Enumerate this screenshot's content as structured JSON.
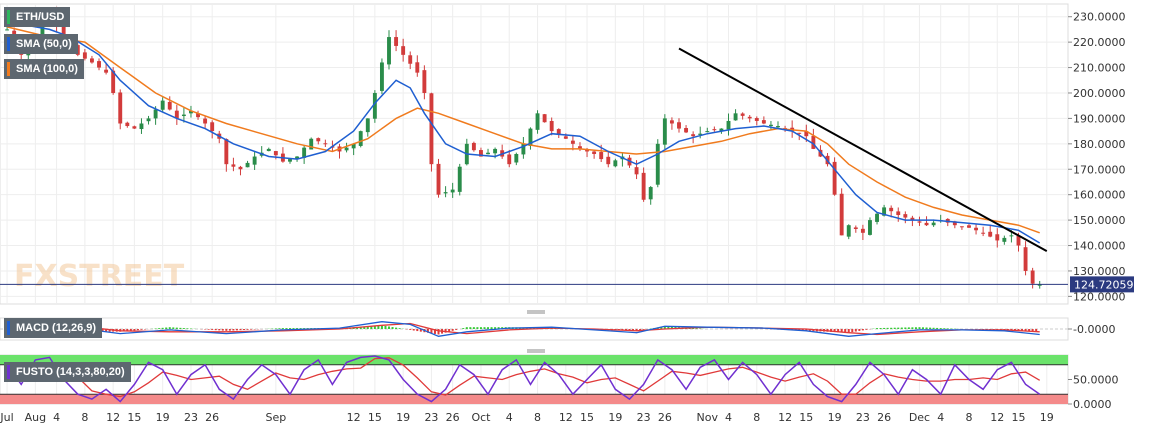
{
  "chart_data": {
    "type": "candlestick",
    "symbol": "ETH/USD",
    "watermark": "FXSTREET",
    "last_price": "124.72059",
    "y_ticks": [
      "230.0000",
      "220.0000",
      "210.0000",
      "200.0000",
      "190.0000",
      "180.0000",
      "170.0000",
      "160.0000",
      "150.0000",
      "140.0000",
      "130.0000",
      "120.0000"
    ],
    "ylim": [
      117,
      235
    ],
    "x_ticks": [
      "Jul",
      "Aug",
      "4",
      "8",
      "12",
      "15",
      "19",
      "23",
      "26",
      "Sep",
      "12",
      "15",
      "19",
      "23",
      "26",
      "Oct",
      "4",
      "8",
      "12",
      "15",
      "19",
      "23",
      "26",
      "Nov",
      "4",
      "8",
      "12",
      "15",
      "19",
      "23",
      "26",
      "Dec",
      "4",
      "8",
      "12",
      "15",
      "19"
    ],
    "x_tick_days": [
      -3,
      1,
      4,
      8,
      12,
      15,
      19,
      23,
      26,
      35,
      46,
      49,
      53,
      57,
      60,
      64,
      68,
      72,
      76,
      79,
      83,
      87,
      90,
      96,
      99,
      103,
      107,
      110,
      114,
      118,
      121,
      126,
      129,
      133,
      137,
      140,
      144
    ],
    "overlays": [
      {
        "name": "SMA (50,0)",
        "color": "#1f5fd1"
      },
      {
        "name": "SMA (100,0)",
        "color": "#f07b1e"
      }
    ],
    "trendline": {
      "color": "#000000",
      "from": [
        92,
        217.5
      ],
      "to": [
        144,
        137.8
      ]
    },
    "close": [
      {
        "d": -3,
        "v": 225
      },
      {
        "d": -1,
        "v": 215
      },
      {
        "d": 1,
        "v": 222
      },
      {
        "d": 3,
        "v": 232
      },
      {
        "d": 5,
        "v": 222
      },
      {
        "d": 7,
        "v": 215
      },
      {
        "d": 9,
        "v": 212
      },
      {
        "d": 11,
        "v": 208
      },
      {
        "d": 12,
        "v": 200
      },
      {
        "d": 13,
        "v": 188
      },
      {
        "d": 15,
        "v": 186
      },
      {
        "d": 17,
        "v": 190
      },
      {
        "d": 19,
        "v": 197
      },
      {
        "d": 21,
        "v": 190
      },
      {
        "d": 23,
        "v": 193
      },
      {
        "d": 25,
        "v": 188
      },
      {
        "d": 27,
        "v": 182
      },
      {
        "d": 28,
        "v": 172
      },
      {
        "d": 30,
        "v": 170
      },
      {
        "d": 32,
        "v": 175
      },
      {
        "d": 34,
        "v": 178
      },
      {
        "d": 36,
        "v": 173
      },
      {
        "d": 38,
        "v": 175
      },
      {
        "d": 40,
        "v": 182
      },
      {
        "d": 42,
        "v": 180
      },
      {
        "d": 44,
        "v": 177
      },
      {
        "d": 46,
        "v": 180
      },
      {
        "d": 48,
        "v": 190
      },
      {
        "d": 49,
        "v": 200
      },
      {
        "d": 50,
        "v": 212
      },
      {
        "d": 51,
        "v": 222
      },
      {
        "d": 53,
        "v": 215
      },
      {
        "d": 55,
        "v": 208
      },
      {
        "d": 56,
        "v": 200
      },
      {
        "d": 57,
        "v": 172
      },
      {
        "d": 58,
        "v": 160
      },
      {
        "d": 60,
        "v": 162
      },
      {
        "d": 62,
        "v": 180
      },
      {
        "d": 64,
        "v": 175
      },
      {
        "d": 66,
        "v": 178
      },
      {
        "d": 68,
        "v": 172
      },
      {
        "d": 70,
        "v": 180
      },
      {
        "d": 72,
        "v": 192
      },
      {
        "d": 74,
        "v": 185
      },
      {
        "d": 76,
        "v": 182
      },
      {
        "d": 78,
        "v": 178
      },
      {
        "d": 80,
        "v": 176
      },
      {
        "d": 82,
        "v": 172
      },
      {
        "d": 84,
        "v": 175
      },
      {
        "d": 86,
        "v": 168
      },
      {
        "d": 87,
        "v": 158
      },
      {
        "d": 88,
        "v": 163
      },
      {
        "d": 89,
        "v": 180
      },
      {
        "d": 90,
        "v": 190
      },
      {
        "d": 92,
        "v": 186
      },
      {
        "d": 94,
        "v": 183
      },
      {
        "d": 96,
        "v": 185
      },
      {
        "d": 98,
        "v": 186
      },
      {
        "d": 100,
        "v": 192
      },
      {
        "d": 102,
        "v": 190
      },
      {
        "d": 104,
        "v": 188
      },
      {
        "d": 106,
        "v": 187
      },
      {
        "d": 108,
        "v": 185
      },
      {
        "d": 110,
        "v": 183
      },
      {
        "d": 111,
        "v": 178
      },
      {
        "d": 113,
        "v": 172
      },
      {
        "d": 114,
        "v": 160
      },
      {
        "d": 115,
        "v": 144
      },
      {
        "d": 116,
        "v": 148
      },
      {
        "d": 118,
        "v": 145
      },
      {
        "d": 119,
        "v": 150
      },
      {
        "d": 121,
        "v": 155
      },
      {
        "d": 123,
        "v": 152
      },
      {
        "d": 125,
        "v": 150
      },
      {
        "d": 127,
        "v": 148
      },
      {
        "d": 129,
        "v": 150
      },
      {
        "d": 131,
        "v": 148
      },
      {
        "d": 133,
        "v": 147
      },
      {
        "d": 135,
        "v": 145
      },
      {
        "d": 137,
        "v": 142
      },
      {
        "d": 139,
        "v": 144
      },
      {
        "d": 140,
        "v": 140
      },
      {
        "d": 141,
        "v": 130
      },
      {
        "d": 142,
        "v": 125
      },
      {
        "d": 143,
        "v": 124.72
      }
    ],
    "sma50": [
      {
        "d": -3,
        "v": 228
      },
      {
        "d": 3,
        "v": 225
      },
      {
        "d": 6,
        "v": 222
      },
      {
        "d": 10,
        "v": 215
      },
      {
        "d": 13,
        "v": 205
      },
      {
        "d": 17,
        "v": 195
      },
      {
        "d": 21,
        "v": 190
      },
      {
        "d": 25,
        "v": 186
      },
      {
        "d": 29,
        "v": 180
      },
      {
        "d": 34,
        "v": 175
      },
      {
        "d": 38,
        "v": 174
      },
      {
        "d": 42,
        "v": 177
      },
      {
        "d": 46,
        "v": 185
      },
      {
        "d": 49,
        "v": 196
      },
      {
        "d": 52,
        "v": 205
      },
      {
        "d": 54,
        "v": 202
      },
      {
        "d": 56,
        "v": 192
      },
      {
        "d": 59,
        "v": 180
      },
      {
        "d": 62,
        "v": 176
      },
      {
        "d": 66,
        "v": 175
      },
      {
        "d": 70,
        "v": 179
      },
      {
        "d": 74,
        "v": 184
      },
      {
        "d": 78,
        "v": 183
      },
      {
        "d": 82,
        "v": 177
      },
      {
        "d": 86,
        "v": 172
      },
      {
        "d": 89,
        "v": 176
      },
      {
        "d": 92,
        "v": 181
      },
      {
        "d": 96,
        "v": 184
      },
      {
        "d": 100,
        "v": 186
      },
      {
        "d": 104,
        "v": 187
      },
      {
        "d": 108,
        "v": 185
      },
      {
        "d": 111,
        "v": 180
      },
      {
        "d": 114,
        "v": 170
      },
      {
        "d": 117,
        "v": 160
      },
      {
        "d": 120,
        "v": 153
      },
      {
        "d": 124,
        "v": 150
      },
      {
        "d": 128,
        "v": 150
      },
      {
        "d": 132,
        "v": 149
      },
      {
        "d": 136,
        "v": 148
      },
      {
        "d": 140,
        "v": 146
      },
      {
        "d": 143,
        "v": 141
      }
    ],
    "sma100": [
      {
        "d": -3,
        "v": 226
      },
      {
        "d": 3,
        "v": 222
      },
      {
        "d": 8,
        "v": 220
      },
      {
        "d": 13,
        "v": 210
      },
      {
        "d": 18,
        "v": 200
      },
      {
        "d": 23,
        "v": 193
      },
      {
        "d": 28,
        "v": 188
      },
      {
        "d": 33,
        "v": 184
      },
      {
        "d": 38,
        "v": 180
      },
      {
        "d": 43,
        "v": 177
      },
      {
        "d": 48,
        "v": 182
      },
      {
        "d": 52,
        "v": 190
      },
      {
        "d": 55,
        "v": 194
      },
      {
        "d": 58,
        "v": 192
      },
      {
        "d": 62,
        "v": 188
      },
      {
        "d": 66,
        "v": 184
      },
      {
        "d": 70,
        "v": 180
      },
      {
        "d": 74,
        "v": 178
      },
      {
        "d": 78,
        "v": 178
      },
      {
        "d": 82,
        "v": 177
      },
      {
        "d": 86,
        "v": 176
      },
      {
        "d": 90,
        "v": 177
      },
      {
        "d": 94,
        "v": 179
      },
      {
        "d": 98,
        "v": 181
      },
      {
        "d": 102,
        "v": 184
      },
      {
        "d": 106,
        "v": 186
      },
      {
        "d": 110,
        "v": 185
      },
      {
        "d": 113,
        "v": 180
      },
      {
        "d": 116,
        "v": 172
      },
      {
        "d": 120,
        "v": 165
      },
      {
        "d": 124,
        "v": 159
      },
      {
        "d": 128,
        "v": 155
      },
      {
        "d": 132,
        "v": 152
      },
      {
        "d": 136,
        "v": 150
      },
      {
        "d": 140,
        "v": 148
      },
      {
        "d": 143,
        "v": 145
      }
    ],
    "macd": {
      "label": "MACD (12,26,9)",
      "y_tick": "-0.0000",
      "ylim": [
        -12,
        12
      ],
      "colors": {
        "macd": "#1f5fd1",
        "signal": "#e03a3a",
        "hist_pos": "#33cc33",
        "hist_neg": "#e03a3a"
      },
      "values": [
        {
          "d": -3,
          "m": 6,
          "s": 5
        },
        {
          "d": 6,
          "m": 2,
          "s": 4
        },
        {
          "d": 13,
          "m": -5,
          "s": -2
        },
        {
          "d": 20,
          "m": -1,
          "s": -3
        },
        {
          "d": 28,
          "m": -5,
          "s": -3
        },
        {
          "d": 36,
          "m": -1,
          "s": -2
        },
        {
          "d": 44,
          "m": 1,
          "s": 0
        },
        {
          "d": 50,
          "m": 8,
          "s": 4
        },
        {
          "d": 54,
          "m": 5,
          "s": 6
        },
        {
          "d": 58,
          "m": -8,
          "s": -2
        },
        {
          "d": 62,
          "m": -3,
          "s": -5
        },
        {
          "d": 68,
          "m": 1,
          "s": -1
        },
        {
          "d": 74,
          "m": 2,
          "s": 1
        },
        {
          "d": 80,
          "m": -1,
          "s": 0
        },
        {
          "d": 86,
          "m": -4,
          "s": -2
        },
        {
          "d": 90,
          "m": 3,
          "s": 0
        },
        {
          "d": 96,
          "m": 2,
          "s": 2
        },
        {
          "d": 104,
          "m": 1,
          "s": 1
        },
        {
          "d": 110,
          "m": -2,
          "s": 0
        },
        {
          "d": 116,
          "m": -8,
          "s": -4
        },
        {
          "d": 120,
          "m": -5,
          "s": -6
        },
        {
          "d": 126,
          "m": -1,
          "s": -3
        },
        {
          "d": 132,
          "m": -1,
          "s": -1
        },
        {
          "d": 138,
          "m": -2,
          "s": -1
        },
        {
          "d": 143,
          "m": -6,
          "s": -3
        }
      ]
    },
    "fusto": {
      "label": "FUSTO (14,3,3,80,20)",
      "y_ticks": [
        "50.0000",
        "0.0000"
      ],
      "ylim": [
        0,
        100
      ],
      "overbought": 80,
      "oversold": 20,
      "colors": {
        "k": "#7030d0",
        "d": "#e03a3a",
        "upper_zone": "#6be36b",
        "lower_zone": "#f48a8a"
      },
      "values": [
        {
          "d": -3,
          "k": 80
        },
        {
          "d": -1,
          "k": 40
        },
        {
          "d": 1,
          "k": 90
        },
        {
          "d": 3,
          "k": 95
        },
        {
          "d": 5,
          "k": 50
        },
        {
          "d": 7,
          "k": 20
        },
        {
          "d": 9,
          "k": 10
        },
        {
          "d": 11,
          "k": 30
        },
        {
          "d": 13,
          "k": 5
        },
        {
          "d": 15,
          "k": 40
        },
        {
          "d": 17,
          "k": 85
        },
        {
          "d": 19,
          "k": 70
        },
        {
          "d": 21,
          "k": 20
        },
        {
          "d": 23,
          "k": 60
        },
        {
          "d": 25,
          "k": 80
        },
        {
          "d": 27,
          "k": 30
        },
        {
          "d": 29,
          "k": 10
        },
        {
          "d": 31,
          "k": 50
        },
        {
          "d": 33,
          "k": 80
        },
        {
          "d": 35,
          "k": 60
        },
        {
          "d": 37,
          "k": 20
        },
        {
          "d": 39,
          "k": 70
        },
        {
          "d": 41,
          "k": 90
        },
        {
          "d": 43,
          "k": 40
        },
        {
          "d": 45,
          "k": 85
        },
        {
          "d": 47,
          "k": 95
        },
        {
          "d": 49,
          "k": 98
        },
        {
          "d": 51,
          "k": 90
        },
        {
          "d": 53,
          "k": 50
        },
        {
          "d": 55,
          "k": 20
        },
        {
          "d": 57,
          "k": 5
        },
        {
          "d": 59,
          "k": 30
        },
        {
          "d": 61,
          "k": 80
        },
        {
          "d": 63,
          "k": 60
        },
        {
          "d": 65,
          "k": 20
        },
        {
          "d": 67,
          "k": 70
        },
        {
          "d": 69,
          "k": 90
        },
        {
          "d": 71,
          "k": 40
        },
        {
          "d": 73,
          "k": 85
        },
        {
          "d": 75,
          "k": 60
        },
        {
          "d": 77,
          "k": 20
        },
        {
          "d": 79,
          "k": 50
        },
        {
          "d": 81,
          "k": 80
        },
        {
          "d": 83,
          "k": 30
        },
        {
          "d": 85,
          "k": 10
        },
        {
          "d": 87,
          "k": 40
        },
        {
          "d": 89,
          "k": 90
        },
        {
          "d": 91,
          "k": 70
        },
        {
          "d": 93,
          "k": 30
        },
        {
          "d": 95,
          "k": 75
        },
        {
          "d": 97,
          "k": 90
        },
        {
          "d": 99,
          "k": 50
        },
        {
          "d": 101,
          "k": 85
        },
        {
          "d": 103,
          "k": 60
        },
        {
          "d": 105,
          "k": 20
        },
        {
          "d": 107,
          "k": 60
        },
        {
          "d": 109,
          "k": 85
        },
        {
          "d": 111,
          "k": 40
        },
        {
          "d": 113,
          "k": 15
        },
        {
          "d": 115,
          "k": 5
        },
        {
          "d": 117,
          "k": 40
        },
        {
          "d": 119,
          "k": 85
        },
        {
          "d": 121,
          "k": 60
        },
        {
          "d": 123,
          "k": 20
        },
        {
          "d": 125,
          "k": 70
        },
        {
          "d": 127,
          "k": 50
        },
        {
          "d": 129,
          "k": 20
        },
        {
          "d": 131,
          "k": 80
        },
        {
          "d": 133,
          "k": 50
        },
        {
          "d": 135,
          "k": 30
        },
        {
          "d": 137,
          "k": 70
        },
        {
          "d": 139,
          "k": 85
        },
        {
          "d": 141,
          "k": 40
        },
        {
          "d": 143,
          "k": 20
        }
      ]
    }
  }
}
